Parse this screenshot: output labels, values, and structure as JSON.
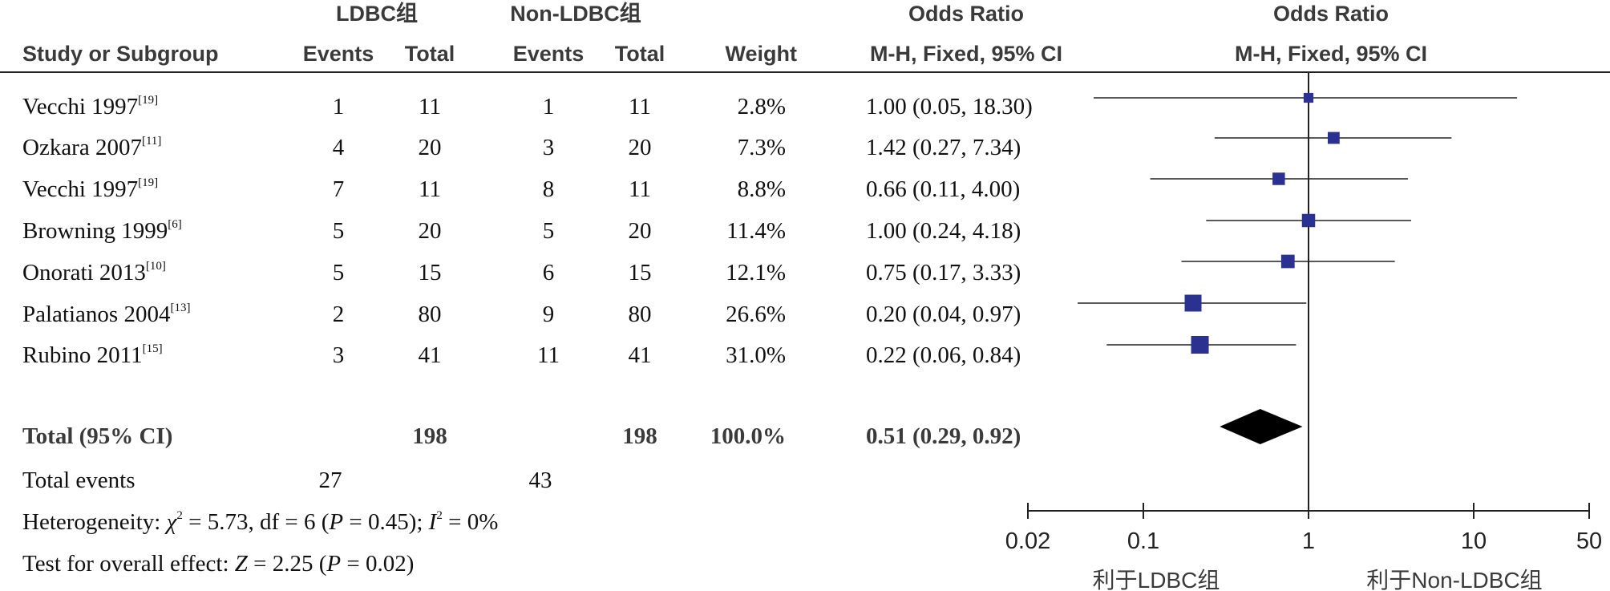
{
  "headers": {
    "group1": "LDBC组",
    "group2": "Non-LDBC组",
    "or_top": "Odds Ratio",
    "plot_top": "Odds Ratio",
    "study": "Study or Subgroup",
    "events1": "Events",
    "total1": "Total",
    "events2": "Events",
    "total2": "Total",
    "weight": "Weight",
    "or_method": "M-H, Fixed, 95% CI",
    "plot_method": "M-H, Fixed, 95% CI"
  },
  "studies": [
    {
      "name": "Vecchi 1997",
      "ref": "[19]",
      "events1": "1",
      "total1": "11",
      "events2": "1",
      "total2": "11",
      "weight": "2.8%",
      "ci": "1.00 (0.05, 18.30)"
    },
    {
      "name": "Ozkara 2007",
      "ref": "[11]",
      "events1": "4",
      "total1": "20",
      "events2": "3",
      "total2": "20",
      "weight": "7.3%",
      "ci": "1.42 (0.27, 7.34)"
    },
    {
      "name": "Vecchi 1997",
      "ref": "[19]",
      "events1": "7",
      "total1": "11",
      "events2": "8",
      "total2": "11",
      "weight": "8.8%",
      "ci": "0.66 (0.11, 4.00)"
    },
    {
      "name": "Browning 1999",
      "ref": "[6]",
      "events1": "5",
      "total1": "20",
      "events2": "5",
      "total2": "20",
      "weight": "11.4%",
      "ci": "1.00 (0.24, 4.18)"
    },
    {
      "name": "Onorati 2013",
      "ref": "[10]",
      "events1": "5",
      "total1": "15",
      "events2": "6",
      "total2": "15",
      "weight": "12.1%",
      "ci": "0.75 (0.17, 3.33)"
    },
    {
      "name": "Palatianos 2004",
      "ref": "[13]",
      "events1": "2",
      "total1": "80",
      "events2": "9",
      "total2": "80",
      "weight": "26.6%",
      "ci": "0.20 (0.04, 0.97)"
    },
    {
      "name": "Rubino 2011",
      "ref": "[15]",
      "events1": "3",
      "total1": "41",
      "events2": "11",
      "total2": "41",
      "weight": "31.0%",
      "ci": "0.22 (0.06, 0.84)"
    }
  ],
  "total": {
    "label": "Total (95% CI)",
    "total1": "198",
    "total2": "198",
    "weight": "100.0%",
    "ci": "0.51 (0.29, 0.92)"
  },
  "total_events": {
    "label": "Total events",
    "events1": "27",
    "events2": "43"
  },
  "heterogeneity": {
    "prefix": "Heterogeneity: ",
    "chi_symbol": "χ",
    "chi_value": " = 5.73, df = 6 (",
    "p_symbol": "P",
    "p_value": " = 0.45); ",
    "i_symbol": "I",
    "i_value": " = 0%"
  },
  "overall": {
    "prefix": "Test for overall effect: ",
    "z_symbol": "Z",
    "z_value": " = 2.25 (",
    "p_symbol": "P",
    "p_value": " = 0.02)"
  },
  "chart_data": {
    "type": "forest",
    "scale": "log",
    "xlim": [
      0.02,
      50
    ],
    "ticks": [
      0.02,
      0.1,
      1,
      10,
      50
    ],
    "tick_labels": [
      "0.02",
      "0.1",
      "1",
      "10",
      "50"
    ],
    "null_line": 1,
    "favours_left": "利于LDBC组",
    "favours_right": "利于Non-LDBC组",
    "marker_color": "#2b3190",
    "diamond_color": "#000000",
    "studies": [
      {
        "or": 1.0,
        "lo": 0.05,
        "hi": 18.3,
        "weight": 2.8
      },
      {
        "or": 1.42,
        "lo": 0.27,
        "hi": 7.34,
        "weight": 7.3
      },
      {
        "or": 0.66,
        "lo": 0.11,
        "hi": 4.0,
        "weight": 8.8
      },
      {
        "or": 1.0,
        "lo": 0.24,
        "hi": 4.18,
        "weight": 11.4
      },
      {
        "or": 0.75,
        "lo": 0.17,
        "hi": 3.33,
        "weight": 12.1
      },
      {
        "or": 0.2,
        "lo": 0.04,
        "hi": 0.97,
        "weight": 26.6
      },
      {
        "or": 0.22,
        "lo": 0.06,
        "hi": 0.84,
        "weight": 31.0
      }
    ],
    "pooled": {
      "or": 0.51,
      "lo": 0.29,
      "hi": 0.92
    }
  }
}
